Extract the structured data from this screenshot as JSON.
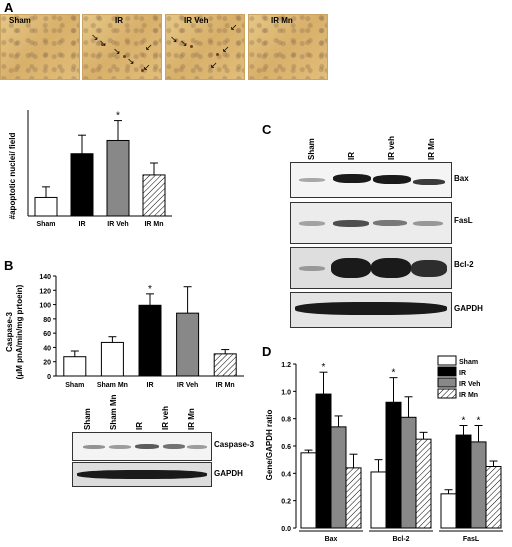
{
  "panels": {
    "a": "A",
    "b": "B",
    "c": "C",
    "d": "D"
  },
  "micrographs": [
    "Sham",
    "IR",
    "IR Veh",
    "IR Mn"
  ],
  "chart_data": [
    {
      "type": "bar",
      "panel": "A",
      "categories": [
        "Sham",
        "IR",
        "IR Veh",
        "IR Mn"
      ],
      "values": [
        0.7,
        2.35,
        2.85,
        1.55
      ],
      "errors": [
        0.4,
        0.7,
        0.75,
        0.45
      ],
      "fills": [
        "white",
        "black",
        "gray",
        "hatch"
      ],
      "significance": [
        "",
        "",
        "*",
        ""
      ],
      "ylabel": "#apoptotic nuclei/ field",
      "ylim": [
        0,
        4
      ]
    },
    {
      "type": "bar",
      "panel": "B",
      "categories": [
        "Sham",
        "Sham Mn",
        "IR",
        "IR Veh",
        "IR Mn"
      ],
      "values": [
        27,
        47,
        99,
        88,
        31
      ],
      "errors": [
        8,
        8,
        16,
        37,
        6
      ],
      "fills": [
        "white",
        "white",
        "black",
        "gray",
        "hatch"
      ],
      "significance": [
        "",
        "",
        "*",
        "",
        ""
      ],
      "ylabel": "Caspase-3",
      "ylabel2": "(μM pnA/min/mg prtoein)",
      "yticks": [
        0,
        20,
        40,
        60,
        80,
        100,
        120,
        140
      ],
      "ylim": [
        0,
        140
      ]
    },
    {
      "type": "bar",
      "panel": "D",
      "categories": [
        "Bax",
        "Bcl-2",
        "FasL"
      ],
      "series": [
        {
          "name": "Sham",
          "values": [
            0.55,
            0.41,
            0.25
          ],
          "errors": [
            0.02,
            0.09,
            0.03
          ],
          "fill": "white"
        },
        {
          "name": "IR",
          "values": [
            0.98,
            0.92,
            0.68
          ],
          "errors": [
            0.16,
            0.18,
            0.07
          ],
          "fill": "black"
        },
        {
          "name": "IR Veh",
          "values": [
            0.74,
            0.81,
            0.63
          ],
          "errors": [
            0.08,
            0.15,
            0.12
          ],
          "fill": "gray"
        },
        {
          "name": "IR Mn",
          "values": [
            0.44,
            0.65,
            0.45
          ],
          "errors": [
            0.1,
            0.05,
            0.04
          ],
          "fill": "hatch"
        }
      ],
      "significance": [
        [
          "",
          "*",
          "",
          ""
        ],
        [
          "",
          "*",
          "",
          ""
        ],
        [
          "",
          "*",
          "*",
          ""
        ]
      ],
      "ylabel": "Gene/GAPDH ratio",
      "yticks": [
        0.0,
        0.2,
        0.4,
        0.6,
        0.8,
        1.0,
        1.2
      ],
      "ylim": [
        0,
        1.2
      ],
      "legend": "top-right"
    }
  ],
  "blot_b": {
    "lanes": [
      "Sham",
      "Sham Mn",
      "IR",
      "IR veh",
      "IR Mn"
    ],
    "rows": [
      "Caspase-3",
      "GAPDH"
    ]
  },
  "blot_c": {
    "lanes": [
      "Sham",
      "IR",
      "IR veh",
      "IR Mn"
    ],
    "rows": [
      "Bax",
      "FasL",
      "Bcl-2",
      "GAPDH"
    ]
  }
}
